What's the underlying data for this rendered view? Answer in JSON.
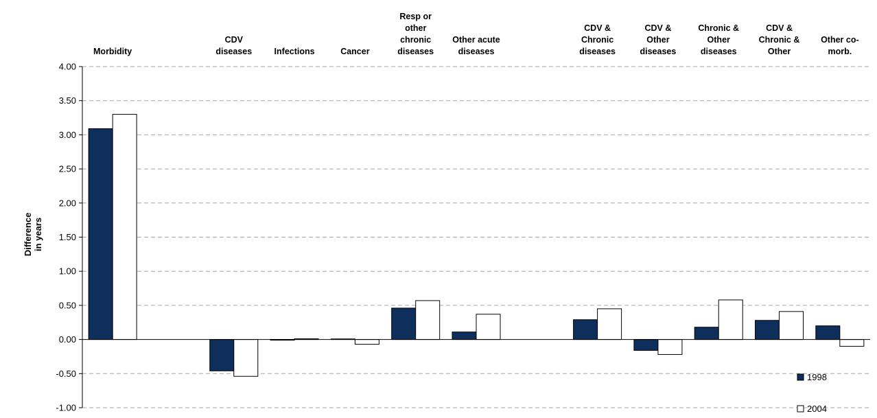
{
  "chart_data": {
    "type": "bar",
    "ylabel": [
      "Difference",
      "in years"
    ],
    "ylim": [
      -1.0,
      4.0
    ],
    "ytick_step": 0.5,
    "ytick_labels": [
      "-1.00",
      "-0.50",
      "0.00",
      "0.50",
      "1.00",
      "1.50",
      "2.00",
      "2.50",
      "3.00",
      "3.50",
      "4.00"
    ],
    "grid": true,
    "legend_position": "bottom-right",
    "categories": [
      [
        "Morbidity"
      ],
      [
        ""
      ],
      [
        "CDV",
        "diseases"
      ],
      [
        "Infections"
      ],
      [
        "Cancer"
      ],
      [
        "Resp or",
        "other",
        "chronic",
        "diseases"
      ],
      [
        "Other acute",
        "diseases"
      ],
      [
        ""
      ],
      [
        "CDV &",
        "Chronic",
        "diseases"
      ],
      [
        "CDV &",
        "Other",
        "diseases"
      ],
      [
        "Chronic &",
        "Other",
        "diseases"
      ],
      [
        "CDV &",
        "Chronic &",
        "Other"
      ],
      [
        "Other co-",
        "morb."
      ]
    ],
    "series": [
      {
        "name": "1998",
        "color": "#0e2f5c",
        "values": [
          3.09,
          null,
          -0.46,
          -0.01,
          0.0,
          0.46,
          0.11,
          null,
          0.29,
          -0.16,
          0.18,
          0.28,
          0.2
        ]
      },
      {
        "name": "2004",
        "color": "#ffffff",
        "values": [
          3.3,
          null,
          -0.54,
          0.01,
          -0.07,
          0.57,
          0.37,
          null,
          0.45,
          -0.22,
          0.58,
          0.41,
          -0.1
        ]
      }
    ]
  }
}
